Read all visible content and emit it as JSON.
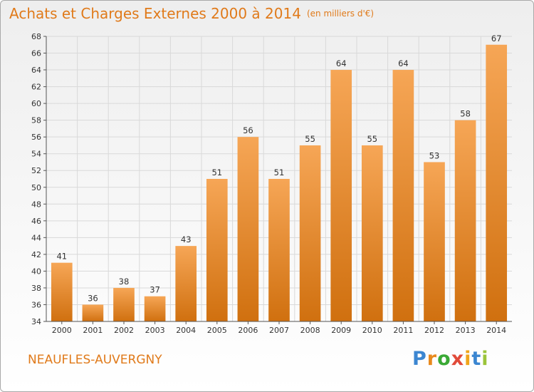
{
  "title": "Achats et Charges Externes 2000 à 2014",
  "unit_note": "(en milliers d'€)",
  "commune": "NEAUFLES-AUVERGNY",
  "logo": {
    "letters": [
      "P",
      "r",
      "o",
      "x",
      "i",
      "t",
      "i"
    ],
    "colors": [
      "#3b86d1",
      "#e8891d",
      "#3aa935",
      "#e14a39",
      "#f0a51a",
      "#3b86d1",
      "#9bc43a"
    ]
  },
  "colors": {
    "accent": "#e07a1a",
    "bar_top": "#f6a656",
    "bar_bottom": "#d0700f",
    "grid": "#d9d9d9",
    "axis": "#555555"
  },
  "chart_data": {
    "type": "bar",
    "title": "Achats et Charges Externes 2000 à 2014",
    "subtitle": "(en milliers d'€)",
    "categories": [
      "2000",
      "2001",
      "2002",
      "2003",
      "2004",
      "2005",
      "2006",
      "2007",
      "2008",
      "2009",
      "2010",
      "2011",
      "2012",
      "2013",
      "2014"
    ],
    "values": [
      41,
      36,
      38,
      37,
      43,
      51,
      56,
      51,
      55,
      64,
      55,
      64,
      53,
      58,
      67
    ],
    "ylim": [
      34,
      68
    ],
    "yticks": [
      34,
      36,
      38,
      40,
      42,
      44,
      46,
      48,
      50,
      52,
      54,
      56,
      58,
      60,
      62,
      64,
      66,
      68
    ],
    "grid": true,
    "data_labels": true
  }
}
